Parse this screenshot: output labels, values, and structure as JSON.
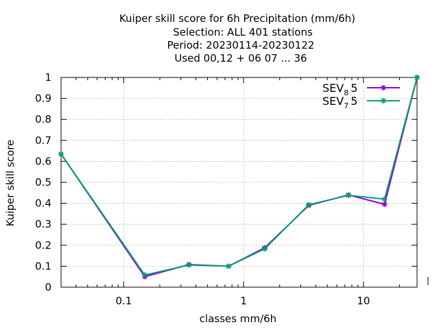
{
  "chart_data": {
    "type": "line",
    "title_lines": [
      "Kuiper skill score  for 6h Precipitation (mm/6h)",
      "Selection: ALL    401 stations",
      "Period: 20230114-20230122",
      "Used  00,12  + 06 07 ... 36"
    ],
    "xlabel": "classes mm/6h",
    "ylabel": "Kuiper skill score",
    "x_scale": "log",
    "xlim": [
      0.03,
      28
    ],
    "ylim": [
      0,
      1
    ],
    "x_ticks": [
      {
        "value": 0.1,
        "label": "0.1"
      },
      {
        "value": 1,
        "label": "1"
      },
      {
        "value": 10,
        "label": "10"
      }
    ],
    "y_ticks": [
      {
        "value": 0,
        "label": "0"
      },
      {
        "value": 0.1,
        "label": "0.1"
      },
      {
        "value": 0.2,
        "label": "0.2"
      },
      {
        "value": 0.3,
        "label": "0.3"
      },
      {
        "value": 0.4,
        "label": "0.4"
      },
      {
        "value": 0.5,
        "label": "0.5"
      },
      {
        "value": 0.6,
        "label": "0.6"
      },
      {
        "value": 0.7,
        "label": "0.7"
      },
      {
        "value": 0.8,
        "label": "0.8"
      },
      {
        "value": 0.9,
        "label": "0.9"
      },
      {
        "value": 1,
        "label": "1"
      }
    ],
    "grid": true,
    "legend_position": "top-right",
    "x": [
      0.03,
      0.15,
      0.35,
      0.75,
      1.5,
      3.5,
      7.5,
      15,
      28
    ],
    "series": [
      {
        "name_main": "SEV",
        "name_sub": "8",
        "name_tail": "5",
        "color": "#9400d3",
        "values": [
          0.635,
          0.05,
          0.108,
          0.1,
          0.188,
          0.39,
          0.44,
          0.395,
          1.0
        ]
      },
      {
        "name_main": "SEV",
        "name_sub": "7",
        "name_tail": "5",
        "color": "#009e73",
        "values": [
          0.635,
          0.058,
          0.106,
          0.1,
          0.183,
          0.393,
          0.438,
          0.42,
          1.0
        ]
      }
    ]
  }
}
